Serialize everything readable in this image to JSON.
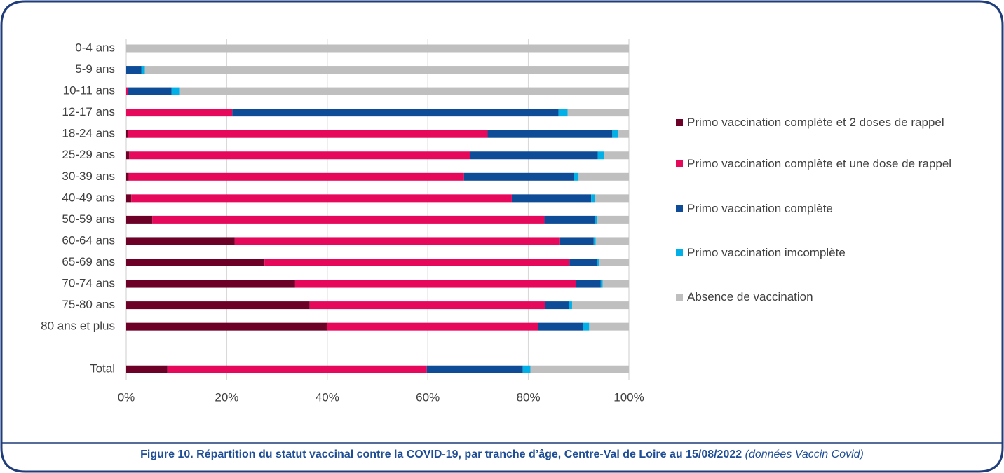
{
  "chart_data": {
    "type": "stacked-bar-horizontal",
    "caption": "Figure 10. Répartition du statut vaccinal contre la COVID-19, par tranche d’âge, Centre-Val de Loire au 15/08/2022",
    "caption_source": "(données Vaccin Covid)",
    "categories": [
      "0-4 ans",
      "5-9 ans",
      "10-11 ans",
      "12-17 ans",
      "18-24 ans",
      "25-29 ans",
      "30-39 ans",
      "40-49 ans",
      "50-59 ans",
      "60-64 ans",
      "65-69 ans",
      "70-74 ans",
      "75-80 ans",
      "80 ans et plus",
      null,
      "Total"
    ],
    "series": [
      {
        "name": "Primo vaccination complète et 2 doses de rappel",
        "color": "#6d0026",
        "values": [
          0,
          0,
          0,
          0,
          0.4,
          0.6,
          0.5,
          1.0,
          5.2,
          21.6,
          27.5,
          33.6,
          36.5,
          40.0,
          null,
          8.2
        ]
      },
      {
        "name": "Primo vaccination complète et une dose de rappel",
        "color": "#e6095b",
        "values": [
          0,
          0,
          0.4,
          21.1,
          71.5,
          67.8,
          66.7,
          75.7,
          78.0,
          64.7,
          60.7,
          55.9,
          46.9,
          42.0,
          null,
          51.6
        ]
      },
      {
        "name": "Primo vaccination complète",
        "color": "#0e4c98",
        "values": [
          0,
          3.0,
          8.6,
          64.9,
          24.8,
          25.4,
          21.8,
          15.8,
          10.0,
          6.7,
          5.4,
          4.9,
          4.7,
          8.8,
          null,
          19.1
        ]
      },
      {
        "name": "Primo vaccination imcomplète",
        "color": "#00b0e6",
        "values": [
          0,
          0.7,
          1.7,
          1.8,
          1.1,
          1.3,
          1.0,
          0.7,
          0.4,
          0.4,
          0.4,
          0.4,
          0.6,
          1.3,
          null,
          1.5
        ]
      },
      {
        "name": "Absence de vaccination",
        "color": "#bfbfbf",
        "values": [
          100,
          96.3,
          89.3,
          12.2,
          2.2,
          4.9,
          10.0,
          6.8,
          6.4,
          6.6,
          6.0,
          5.2,
          11.3,
          7.9,
          null,
          19.6
        ]
      }
    ],
    "xlim": [
      0,
      100
    ],
    "xticks": [
      {
        "value": 0,
        "label": "0%"
      },
      {
        "value": 20,
        "label": "20%"
      },
      {
        "value": 40,
        "label": "40%"
      },
      {
        "value": 60,
        "label": "60%"
      },
      {
        "value": 80,
        "label": "80%"
      },
      {
        "value": 100,
        "label": "100%"
      }
    ],
    "grid": true,
    "legend": "right"
  }
}
